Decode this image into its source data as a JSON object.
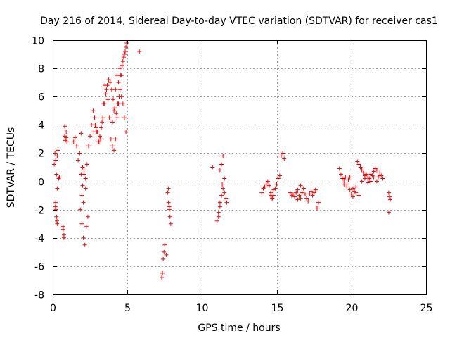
{
  "chart_data": {
    "type": "scatter",
    "title": "Day 216 of 2014, Sidereal Day-to-day VTEC variation (SDTVAR) for receiver cas1",
    "xlabel": "GPS time / hours",
    "ylabel": "SDTVAR / TECUs",
    "xlim": [
      0,
      25
    ],
    "ylim": [
      -8,
      10
    ],
    "xticks": [
      0,
      5,
      10,
      15,
      20,
      25
    ],
    "yticks": [
      -8,
      -6,
      -4,
      -2,
      0,
      2,
      4,
      6,
      8,
      10
    ],
    "grid": true,
    "marker": "+",
    "color": "#ff0000",
    "series": [
      {
        "name": "SDTVAR",
        "x": [
          0.1,
          0.15,
          0.2,
          0.25,
          0.3,
          0.18,
          0.22,
          0.28,
          0.3,
          0.35,
          0.4,
          0.45,
          0.2,
          0.25,
          0.3,
          0.7,
          0.75,
          0.8,
          0.85,
          0.9,
          0.95,
          0.8,
          0.9,
          0.7,
          0.75,
          1.4,
          1.5,
          1.6,
          1.7,
          1.8,
          1.9,
          2.0,
          2.1,
          2.2,
          1.85,
          1.95,
          2.05,
          2.15,
          2.25,
          2.35,
          1.9,
          2.0,
          2.1,
          2.2,
          1.95,
          2.05,
          2.3,
          2.4,
          2.5,
          2.6,
          2.7,
          2.8,
          2.9,
          3.0,
          3.1,
          3.2,
          3.3,
          3.4,
          3.5,
          3.6,
          3.7,
          3.8,
          3.9,
          4.0,
          4.1,
          4.2,
          4.3,
          4.4,
          4.5,
          4.6,
          4.7,
          4.8,
          4.9,
          4.95,
          4.85,
          4.75,
          4.65,
          4.55,
          4.45,
          4.35,
          4.25,
          4.15,
          4.05,
          3.95,
          3.85,
          3.75,
          3.65,
          3.55,
          3.45,
          3.35,
          3.25,
          3.15,
          3.05,
          2.95,
          2.85,
          2.75,
          4.6,
          4.7,
          4.8,
          4.9,
          4.5,
          4.4,
          4.3,
          4.2,
          4.1,
          4.0,
          5.8,
          7.3,
          7.35,
          7.4,
          7.45,
          7.5,
          7.6,
          7.7,
          7.75,
          7.8,
          7.85,
          7.9,
          7.8,
          7.75,
          10.7,
          11.0,
          11.1,
          11.2,
          11.3,
          11.4,
          11.5,
          11.6,
          11.2,
          11.3,
          11.4,
          11.1,
          11.2,
          11.35,
          11.5,
          11.65,
          14.0,
          14.1,
          14.2,
          14.3,
          14.4,
          14.5,
          14.6,
          14.7,
          14.8,
          14.9,
          15.0,
          15.1,
          15.2,
          15.3,
          15.4,
          15.5,
          14.6,
          14.7,
          14.8,
          15.9,
          16.0,
          16.1,
          16.2,
          16.3,
          16.4,
          16.5,
          16.6,
          16.7,
          16.8,
          16.9,
          17.0,
          17.1,
          17.2,
          17.3,
          17.4,
          17.5,
          17.6,
          17.7,
          17.8,
          16.4,
          16.6,
          16.8,
          19.2,
          19.3,
          19.4,
          19.5,
          19.6,
          19.7,
          19.8,
          19.9,
          20.0,
          20.1,
          20.2,
          20.3,
          20.4,
          20.5,
          20.6,
          20.7,
          20.8,
          20.9,
          21.0,
          21.1,
          21.2,
          21.3,
          21.4,
          21.5,
          21.6,
          21.7,
          21.8,
          21.9,
          22.0,
          22.1,
          19.5,
          19.7,
          19.9,
          20.1,
          20.3,
          20.5,
          20.7,
          20.9,
          21.1,
          21.3,
          21.5,
          21.7,
          21.9,
          22.5,
          22.55,
          22.6,
          22.5
        ],
        "y": [
          1.2,
          2.0,
          1.5,
          0.5,
          -0.5,
          -1.8,
          -2.0,
          -2.8,
          1.8,
          2.2,
          0.2,
          0.3,
          -1.5,
          -2.5,
          -3.0,
          -3.2,
          -3.8,
          3.2,
          2.9,
          3.5,
          2.8,
          3.9,
          3.1,
          -3.4,
          -4.0,
          2.8,
          3.1,
          2.5,
          1.5,
          2.0,
          3.4,
          1.0,
          0.5,
          0.2,
          -2.0,
          -3.0,
          -4.0,
          -4.5,
          -3.2,
          -2.5,
          0.5,
          -0.3,
          0.8,
          -0.5,
          -1.0,
          -1.5,
          1.2,
          2.5,
          3.2,
          4.0,
          5.0,
          4.5,
          3.8,
          3.5,
          2.8,
          3.0,
          4.2,
          5.5,
          6.8,
          6.5,
          5.8,
          4.5,
          3.0,
          2.5,
          2.2,
          3.0,
          4.5,
          5.5,
          6.5,
          7.5,
          8.5,
          9.0,
          9.5,
          9.8,
          9.2,
          8.8,
          8.2,
          7.5,
          6.0,
          5.5,
          4.8,
          5.2,
          5.8,
          6.5,
          7.0,
          7.2,
          6.8,
          6.2,
          5.5,
          4.5,
          3.8,
          3.2,
          2.8,
          3.5,
          4.0,
          3.5,
          6.0,
          5.5,
          4.5,
          3.5,
          8.0,
          7.0,
          7.5,
          6.5,
          5.0,
          4.2,
          9.2,
          -6.8,
          -6.5,
          -5.5,
          -5.0,
          -4.5,
          -5.2,
          -0.8,
          -1.5,
          -2.0,
          -2.5,
          -3.0,
          -1.8,
          -0.5,
          1.0,
          -2.8,
          -2.2,
          -1.5,
          -1.0,
          -0.5,
          -0.8,
          -1.2,
          0.8,
          1.2,
          1.8,
          -2.5,
          -1.8,
          -0.2,
          0.2,
          -1.5,
          -0.8,
          -0.5,
          -0.4,
          -0.2,
          0.0,
          -0.3,
          -0.8,
          -1.2,
          -1.0,
          -0.5,
          -0.2,
          0.2,
          0.4,
          1.8,
          2.0,
          1.6,
          -1.0,
          -1.2,
          -0.6,
          -0.8,
          -1.0,
          -0.9,
          -1.1,
          -0.8,
          -0.6,
          -1.0,
          -1.2,
          -0.8,
          -0.5,
          -0.9,
          -1.2,
          -1.4,
          -0.9,
          -0.7,
          -1.0,
          -0.8,
          -0.6,
          -1.9,
          -1.5,
          -1.3,
          -0.3,
          -0.5,
          0.9,
          0.5,
          0.2,
          -0.2,
          0.3,
          -0.4,
          0.1,
          -0.6,
          -0.9,
          -1.1,
          -0.7,
          -0.4,
          1.4,
          1.2,
          1.0,
          0.8,
          0.6,
          0.4,
          0.5,
          0.3,
          0.2,
          0.0,
          0.4,
          0.7,
          0.9,
          0.8,
          0.3,
          0.6,
          0.4,
          0.2,
          0.1,
          -0.2,
          0.3,
          -0.5,
          -0.8,
          -1.0,
          0.0,
          0.2,
          -0.1,
          0.5,
          0.3,
          0.0,
          0.4,
          -0.8,
          -1.1,
          -1.3,
          -2.2
        ]
      }
    ]
  }
}
